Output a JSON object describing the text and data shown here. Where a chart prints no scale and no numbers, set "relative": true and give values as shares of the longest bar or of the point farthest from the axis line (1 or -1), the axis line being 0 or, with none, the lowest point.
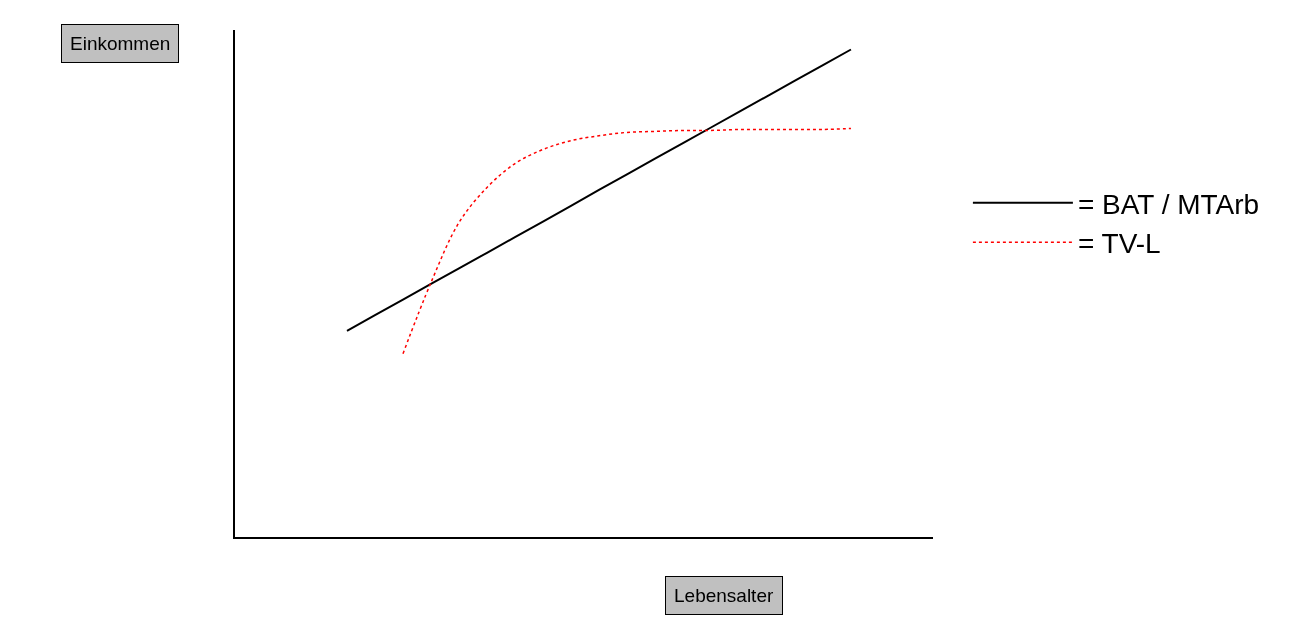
{
  "chart_data": {
    "type": "line",
    "relative": true,
    "xlabel": "Lebensalter",
    "annotations": [
      "Einkommen"
    ],
    "categories": [
      null,
      null,
      null,
      null,
      null,
      null,
      null,
      null,
      null,
      null,
      null,
      null,
      null,
      null,
      null,
      null,
      null,
      null,
      null
    ],
    "series": [
      {
        "name": "= BAT / MTArb",
        "color": "#000000",
        "line_style": "solid",
        "values": [
          0.423,
          0.455,
          0.487,
          0.519,
          0.551,
          0.583,
          0.615,
          0.647,
          0.679,
          0.712,
          0.744,
          0.776,
          0.808,
          0.84,
          0.872,
          0.904,
          0.936,
          0.968,
          1.0
        ]
      },
      {
        "name": "= TV-L",
        "color": "#ff0000",
        "line_style": "dotted",
        "values": [
          null,
          null,
          0.376,
          0.522,
          0.645,
          0.717,
          0.766,
          0.795,
          0.813,
          0.823,
          0.83,
          0.832,
          0.834,
          0.834,
          0.836,
          0.836,
          0.836,
          0.836,
          0.838
        ]
      }
    ],
    "legend": "right",
    "marker": "none"
  }
}
